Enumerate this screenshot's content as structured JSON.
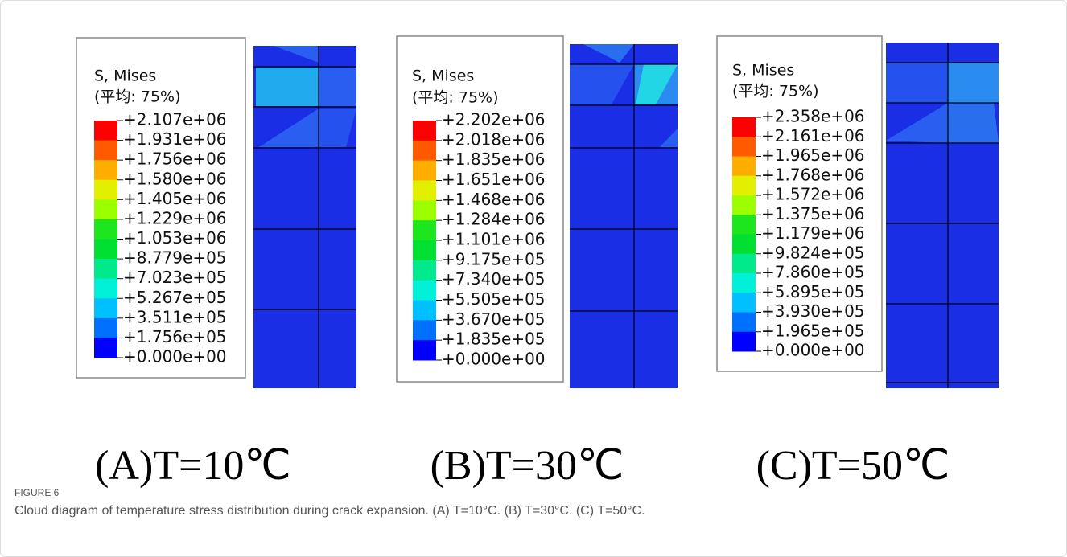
{
  "panels": [
    {
      "legend_title": "S, Mises",
      "legend_subtitle": "(平均: 75%)",
      "levels": [
        "+2.107e+06",
        "+1.931e+06",
        "+1.756e+06",
        "+1.580e+06",
        "+1.405e+06",
        "+1.229e+06",
        "+1.053e+06",
        "+8.779e+05",
        "+7.023e+05",
        "+5.267e+05",
        "+3.511e+05",
        "+1.756e+05",
        "+0.000e+00"
      ],
      "caption": "(A)T=10℃"
    },
    {
      "legend_title": "S, Mises",
      "legend_subtitle": "(平均: 75%)",
      "levels": [
        "+2.202e+06",
        "+2.018e+06",
        "+1.835e+06",
        "+1.651e+06",
        "+1.468e+06",
        "+1.284e+06",
        "+1.101e+06",
        "+9.175e+05",
        "+7.340e+05",
        "+5.505e+05",
        "+3.670e+05",
        "+1.835e+05",
        "+0.000e+00"
      ],
      "caption": "(B)T=30℃"
    },
    {
      "legend_title": "S, Mises",
      "legend_subtitle": "(平均: 75%)",
      "levels": [
        "+2.358e+06",
        "+2.161e+06",
        "+1.965e+06",
        "+1.768e+06",
        "+1.572e+06",
        "+1.375e+06",
        "+1.179e+06",
        "+9.824e+05",
        "+7.860e+05",
        "+5.895e+05",
        "+3.930e+05",
        "+1.965e+05",
        "+0.000e+00"
      ],
      "caption": "(C)T=50℃"
    }
  ],
  "figure_label": "FIGURE 6",
  "figure_caption": "Cloud diagram of temperature stress distribution during crack expansion. (A) T=10°C. (B) T=30°C. (C) T=50°C."
}
